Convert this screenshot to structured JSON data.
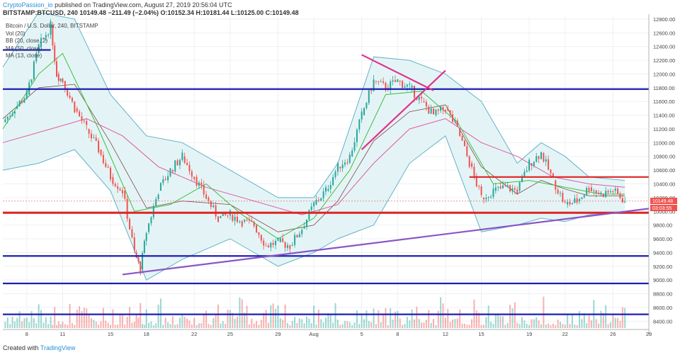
{
  "header": {
    "author": "CryptoPassion_io",
    "published_text": "published on TradingView.com, August 27, 2019 20:56:04 UTC",
    "symbol": "BITSTAMP:BTCUSD, 240",
    "change": "10149.48  −211.49 (−2.04%)",
    "ohlc": "O:10152.34 H:10181.44 L:10125.00 C:10149.48"
  },
  "legend": {
    "title": "Bitcoin / U.S. Dollar, 240, BITSTAMP",
    "items": [
      "Vol (20)",
      "BB (20, close, 2)",
      "MA (50, close)",
      "MA (13, close)"
    ]
  },
  "footer": {
    "created_with": "Created with",
    "brand": "TradingView"
  },
  "price_tags": {
    "last": "10149.48",
    "countdown": "03:03:55"
  },
  "colors": {
    "up": "#26a69a",
    "down": "#ef5350",
    "bb": "#63b3c8",
    "bb_fill": "#e4f4f6",
    "ma50": "#e05aa3",
    "ma13": "#3fbf3f",
    "sma20": "#7a4a4a",
    "support_blue": "#1f1fb0",
    "support_red": "#e02424",
    "trend_purple": "#8a55c8",
    "triangle": "#e0338a"
  },
  "chart_data": {
    "type": "line",
    "title": "Bitcoin / U.S. Dollar, 240, BITSTAMP",
    "ylim": [
      8300,
      12830
    ],
    "y_ticks": [
      8400,
      8600,
      8800,
      9000,
      9200,
      9400,
      9600,
      9800,
      10000,
      10200,
      10400,
      10600,
      10800,
      11000,
      11200,
      11400,
      11600,
      11800,
      12000,
      12200,
      12400,
      12600,
      12800
    ],
    "x_ticks": [
      "8",
      "11",
      "15",
      "18",
      "22",
      "25",
      "29",
      "Aug",
      "5",
      "8",
      "12",
      "15",
      "19",
      "22",
      "26",
      "29"
    ],
    "x_range": [
      "2019-07-06",
      "2019-08-29"
    ],
    "x_tick_dates": [
      "2019-07-08",
      "2019-07-11",
      "2019-07-15",
      "2019-07-18",
      "2019-07-22",
      "2019-07-25",
      "2019-07-29",
      "2019-08-01",
      "2019-08-05",
      "2019-08-08",
      "2019-08-12",
      "2019-08-15",
      "2019-08-19",
      "2019-08-22",
      "2019-08-26",
      "2019-08-29"
    ],
    "grid": true,
    "series": [
      {
        "kind": "close_price",
        "points": [
          [
            "2019-07-06",
            11300
          ],
          [
            "2019-07-07",
            11500
          ],
          [
            "2019-07-08",
            11700
          ],
          [
            "2019-07-09",
            12400
          ],
          [
            "2019-07-10",
            12700
          ],
          [
            "2019-07-10T12",
            12000
          ],
          [
            "2019-07-11",
            11900
          ],
          [
            "2019-07-12",
            11500
          ],
          [
            "2019-07-13",
            11200
          ],
          [
            "2019-07-14",
            10900
          ],
          [
            "2019-07-15",
            10500
          ],
          [
            "2019-07-16",
            10300
          ],
          [
            "2019-07-17",
            9400
          ],
          [
            "2019-07-17T12",
            9150
          ],
          [
            "2019-07-18",
            9700
          ],
          [
            "2019-07-19",
            10300
          ],
          [
            "2019-07-20",
            10600
          ],
          [
            "2019-07-21",
            10800
          ],
          [
            "2019-07-22",
            10500
          ],
          [
            "2019-07-23",
            10200
          ],
          [
            "2019-07-24",
            9900
          ],
          [
            "2019-07-25",
            9950
          ],
          [
            "2019-07-26",
            9850
          ],
          [
            "2019-07-27",
            9800
          ],
          [
            "2019-07-28",
            9500
          ],
          [
            "2019-07-29",
            9550
          ],
          [
            "2019-07-30",
            9500
          ],
          [
            "2019-07-31",
            9750
          ],
          [
            "2019-08-01",
            10100
          ],
          [
            "2019-08-02",
            10300
          ],
          [
            "2019-08-03",
            10650
          ],
          [
            "2019-08-04",
            10800
          ],
          [
            "2019-08-05",
            11400
          ],
          [
            "2019-08-06",
            11900
          ],
          [
            "2019-08-07",
            11800
          ],
          [
            "2019-08-08",
            11900
          ],
          [
            "2019-08-09",
            11800
          ],
          [
            "2019-08-10",
            11600
          ],
          [
            "2019-08-11",
            11400
          ],
          [
            "2019-08-12",
            11500
          ],
          [
            "2019-08-13",
            11200
          ],
          [
            "2019-08-14",
            10700
          ],
          [
            "2019-08-15",
            10200
          ],
          [
            "2019-08-16",
            10300
          ],
          [
            "2019-08-17",
            10350
          ],
          [
            "2019-08-18",
            10300
          ],
          [
            "2019-08-19",
            10700
          ],
          [
            "2019-08-20",
            10850
          ],
          [
            "2019-08-21",
            10450
          ],
          [
            "2019-08-22",
            10100
          ],
          [
            "2019-08-23",
            10150
          ],
          [
            "2019-08-24",
            10350
          ],
          [
            "2019-08-25",
            10250
          ],
          [
            "2019-08-26",
            10300
          ],
          [
            "2019-08-27",
            10149.48
          ]
        ]
      },
      {
        "kind": "bb_upper",
        "points": [
          [
            "2019-07-06",
            12100
          ],
          [
            "2019-07-09",
            12900
          ],
          [
            "2019-07-12",
            12800
          ],
          [
            "2019-07-15",
            11700
          ],
          [
            "2019-07-18",
            11100
          ],
          [
            "2019-07-21",
            11000
          ],
          [
            "2019-07-25",
            10600
          ],
          [
            "2019-07-29",
            10200
          ],
          [
            "2019-08-01",
            10200
          ],
          [
            "2019-08-03",
            10700
          ],
          [
            "2019-08-06",
            12250
          ],
          [
            "2019-08-09",
            12200
          ],
          [
            "2019-08-12",
            12000
          ],
          [
            "2019-08-15",
            11600
          ],
          [
            "2019-08-18",
            10700
          ],
          [
            "2019-08-20",
            11000
          ],
          [
            "2019-08-22",
            10800
          ],
          [
            "2019-08-24",
            10500
          ],
          [
            "2019-08-27",
            10450
          ]
        ]
      },
      {
        "kind": "bb_lower",
        "points": [
          [
            "2019-07-06",
            10600
          ],
          [
            "2019-07-09",
            10700
          ],
          [
            "2019-07-12",
            10900
          ],
          [
            "2019-07-15",
            10300
          ],
          [
            "2019-07-18",
            9000
          ],
          [
            "2019-07-21",
            9300
          ],
          [
            "2019-07-25",
            9600
          ],
          [
            "2019-07-29",
            9200
          ],
          [
            "2019-08-01",
            9400
          ],
          [
            "2019-08-03",
            9600
          ],
          [
            "2019-08-06",
            9800
          ],
          [
            "2019-08-09",
            10700
          ],
          [
            "2019-08-12",
            11100
          ],
          [
            "2019-08-15",
            9700
          ],
          [
            "2019-08-18",
            9800
          ],
          [
            "2019-08-20",
            9900
          ],
          [
            "2019-08-22",
            9850
          ],
          [
            "2019-08-24",
            9950
          ],
          [
            "2019-08-27",
            10000
          ]
        ]
      },
      {
        "kind": "ma50",
        "points": [
          [
            "2019-07-06",
            11000
          ],
          [
            "2019-07-10",
            11200
          ],
          [
            "2019-07-13",
            11350
          ],
          [
            "2019-07-16",
            11100
          ],
          [
            "2019-07-19",
            10650
          ],
          [
            "2019-07-23",
            10350
          ],
          [
            "2019-07-27",
            10150
          ],
          [
            "2019-07-31",
            9950
          ],
          [
            "2019-08-03",
            10100
          ],
          [
            "2019-08-06",
            10700
          ],
          [
            "2019-08-09",
            11200
          ],
          [
            "2019-08-12",
            11350
          ],
          [
            "2019-08-15",
            11000
          ],
          [
            "2019-08-18",
            10800
          ],
          [
            "2019-08-21",
            10500
          ],
          [
            "2019-08-24",
            10400
          ],
          [
            "2019-08-27",
            10350
          ]
        ]
      },
      {
        "kind": "ma13",
        "points": [
          [
            "2019-07-06",
            11200
          ],
          [
            "2019-07-09",
            12000
          ],
          [
            "2019-07-11",
            12300
          ],
          [
            "2019-07-14",
            11200
          ],
          [
            "2019-07-17",
            10000
          ],
          [
            "2019-07-20",
            10100
          ],
          [
            "2019-07-23",
            10400
          ],
          [
            "2019-07-26",
            9950
          ],
          [
            "2019-07-29",
            9600
          ],
          [
            "2019-08-01",
            9900
          ],
          [
            "2019-08-04",
            10600
          ],
          [
            "2019-08-07",
            11700
          ],
          [
            "2019-08-10",
            11750
          ],
          [
            "2019-08-13",
            11300
          ],
          [
            "2019-08-16",
            10400
          ],
          [
            "2019-08-19",
            10450
          ],
          [
            "2019-08-22",
            10350
          ],
          [
            "2019-08-25",
            10250
          ],
          [
            "2019-08-27",
            10250
          ]
        ]
      }
    ],
    "horizontal_levels": [
      {
        "price": 12350,
        "color": "support_blue",
        "from": "2019-07-06",
        "to": "2019-07-10"
      },
      {
        "price": 11780,
        "color": "support_blue"
      },
      {
        "price": 10500,
        "color": "support_red",
        "from": "2019-08-14"
      },
      {
        "price": 9980,
        "color": "support_red",
        "width": 3
      },
      {
        "price": 9350,
        "color": "support_blue"
      },
      {
        "price": 8950,
        "color": "support_blue"
      },
      {
        "price": 8500,
        "color": "support_blue"
      }
    ],
    "trend_lines": [
      {
        "color": "trend_purple",
        "from": [
          "2019-07-16",
          9080
        ],
        "to": [
          "2019-08-29",
          10040
        ]
      },
      {
        "color": "triangle",
        "from": [
          "2019-08-05",
          12280
        ],
        "to": [
          "2019-08-11",
          11760
        ]
      },
      {
        "color": "triangle",
        "from": [
          "2019-08-05",
          10900
        ],
        "to": [
          "2019-08-12",
          12050
        ]
      }
    ]
  }
}
